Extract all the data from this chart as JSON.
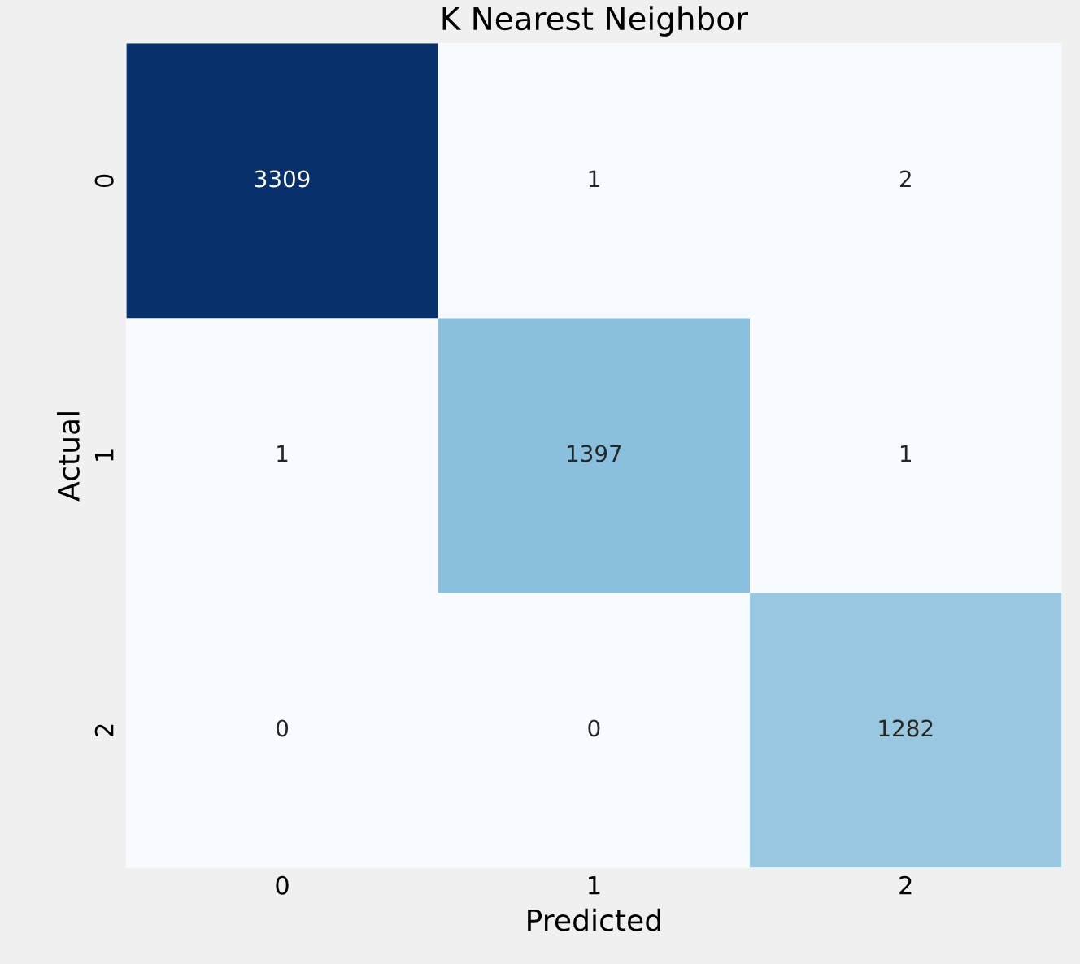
{
  "chart_data": {
    "type": "heatmap",
    "title": "K Nearest Neighbor",
    "xlabel": "Predicted",
    "ylabel": "Actual",
    "categories": [
      "0",
      "1",
      "2"
    ],
    "y_categories": [
      "0",
      "1",
      "2"
    ],
    "cells": [
      [
        3309,
        1,
        2
      ],
      [
        1,
        1397,
        1
      ],
      [
        0,
        0,
        1282
      ]
    ],
    "data_labels": true
  }
}
